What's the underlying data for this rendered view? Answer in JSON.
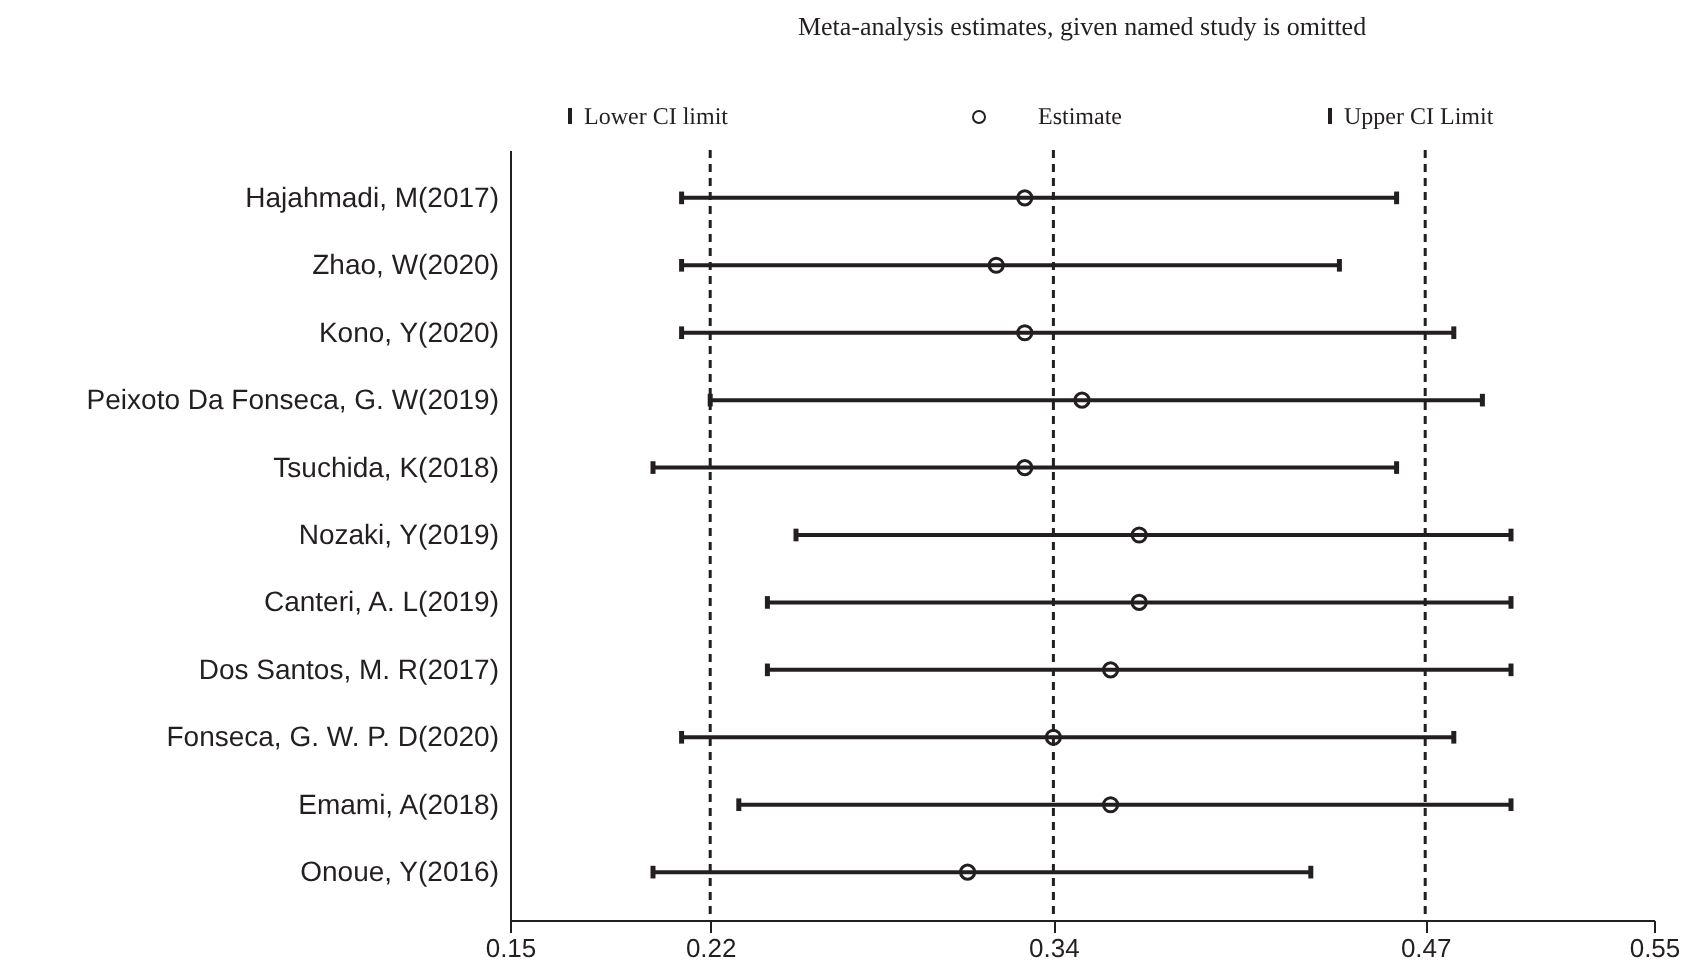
{
  "chart_data": {
    "type": "scatter",
    "orientation": "horizontal",
    "title": "Meta-analysis estimates, given named study is omitted",
    "categories": [
      "Hajahmadi, M(2017)",
      "Zhao, W(2020)",
      "Kono, Y(2020)",
      "Peixoto Da Fonseca, G. W(2019)",
      "Tsuchida, K(2018)",
      "Nozaki, Y(2019)",
      "Canteri, A. L(2019)",
      "Dos Santos, M. R(2017)",
      "Fonseca, G. W. P. D(2020)",
      "Emami, A(2018)",
      "Onoue, Y(2016)"
    ],
    "series": [
      {
        "name": "Estimate",
        "color": "#231f20",
        "marker": "circle",
        "values": [
          0.33,
          0.32,
          0.33,
          0.35,
          0.33,
          0.37,
          0.37,
          0.36,
          0.34,
          0.36,
          0.31
        ],
        "errors": [
          [
            0.21,
            0.46
          ],
          [
            0.21,
            0.44
          ],
          [
            0.21,
            0.48
          ],
          [
            0.22,
            0.49
          ],
          [
            0.2,
            0.46
          ],
          [
            0.25,
            0.5
          ],
          [
            0.24,
            0.5
          ],
          [
            0.24,
            0.5
          ],
          [
            0.21,
            0.48
          ],
          [
            0.23,
            0.5
          ],
          [
            0.2,
            0.43
          ]
        ]
      }
    ],
    "annotations": [
      "Lower CI limit",
      "Upper CI Limit"
    ],
    "xlim": [
      0.15,
      0.55
    ],
    "xticks": [
      0.15,
      0.22,
      0.34,
      0.47,
      0.55
    ],
    "ref_lines": [
      {
        "axis": "x",
        "value": 0.22,
        "line_style": "dashed"
      },
      {
        "axis": "x",
        "value": 0.34,
        "line_style": "dashed"
      },
      {
        "axis": "x",
        "value": 0.47,
        "line_style": "dashed"
      }
    ],
    "legend": "top",
    "grid": false
  }
}
